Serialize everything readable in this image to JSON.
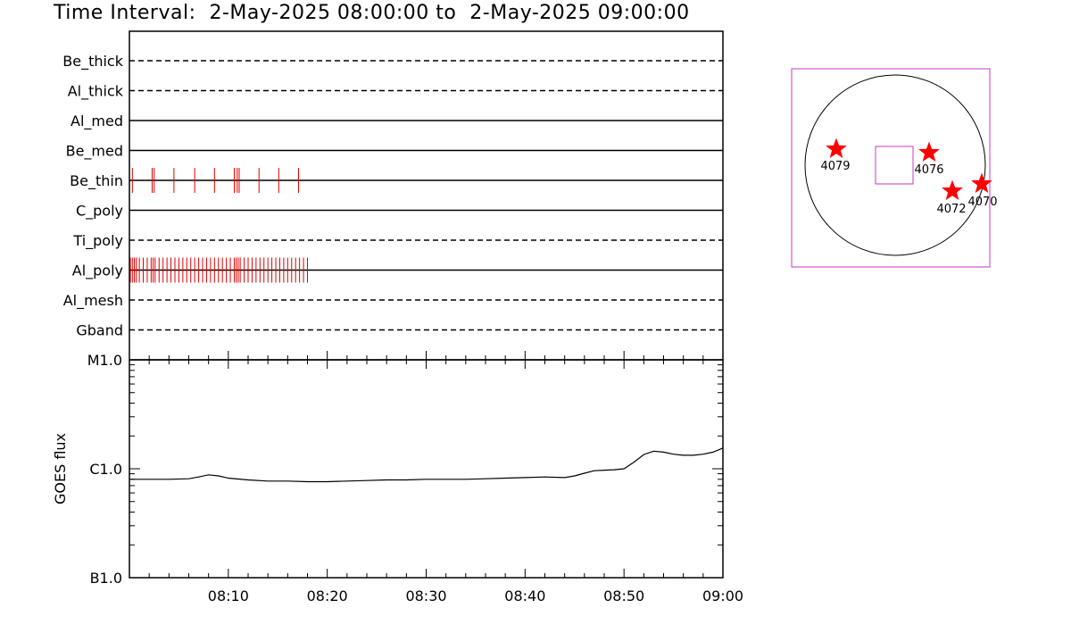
{
  "title": "Time Interval:  2-May-2025 08:00:00 to  2-May-2025 09:00:00",
  "chart_data": [
    {
      "type": "timeline",
      "channels": [
        {
          "name": "Be_thick",
          "style": "dashed",
          "events": []
        },
        {
          "name": "Al_thick",
          "style": "dashed",
          "events": []
        },
        {
          "name": "Al_med",
          "style": "solid",
          "events": []
        },
        {
          "name": "Be_med",
          "style": "solid",
          "events": []
        },
        {
          "name": "Be_thin",
          "style": "solid",
          "events": [
            0.3,
            2.3,
            2.5,
            4.5,
            6.6,
            8.6,
            10.6,
            10.9,
            11.1,
            13.1,
            15.1,
            17.1
          ]
        },
        {
          "name": "C_poly",
          "style": "solid",
          "events": []
        },
        {
          "name": "Ti_poly",
          "style": "dashed",
          "events": []
        },
        {
          "name": "Al_poly",
          "style": "solid",
          "events": [
            0.1,
            0.3,
            0.5,
            0.7,
            1.0,
            1.4,
            1.8,
            2.2,
            2.4,
            2.6,
            3.0,
            3.4,
            3.8,
            4.2,
            4.6,
            5.0,
            5.4,
            5.8,
            6.2,
            6.6,
            7.0,
            7.4,
            7.8,
            8.2,
            8.6,
            9.0,
            9.4,
            9.8,
            10.2,
            10.6,
            10.8,
            11.0,
            11.2,
            11.6,
            12.0,
            12.4,
            12.8,
            13.2,
            13.6,
            14.0,
            14.4,
            14.8,
            15.2,
            15.6,
            16.0,
            16.4,
            16.8,
            17.2,
            17.6,
            18.0
          ]
        },
        {
          "name": "Al_mesh",
          "style": "dashed",
          "events": []
        },
        {
          "name": "Gband",
          "style": "dashed",
          "events": []
        }
      ]
    },
    {
      "type": "line",
      "ylabel": "GOES flux",
      "y_scale": "log",
      "y_ticks": [
        "B1.0",
        "C1.0",
        "M1.0"
      ],
      "x_ticks": [
        "08:10",
        "08:20",
        "08:30",
        "08:40",
        "08:50",
        "09:00"
      ],
      "series": [
        {
          "x": [
            0,
            2,
            4,
            6,
            7,
            8,
            9,
            10,
            12,
            14,
            16,
            18,
            20,
            22,
            24,
            26,
            28,
            30,
            32,
            34,
            36,
            38,
            40,
            42,
            44,
            45,
            46,
            47,
            48,
            49,
            50,
            51,
            52,
            53,
            54,
            55,
            56,
            57,
            58,
            59,
            60
          ],
          "y": [
            8e-07,
            8e-07,
            8e-07,
            8.1e-07,
            8.4e-07,
            8.8e-07,
            8.6e-07,
            8.2e-07,
            7.9e-07,
            7.7e-07,
            7.7e-07,
            7.6e-07,
            7.6e-07,
            7.7e-07,
            7.8e-07,
            7.9e-07,
            7.9e-07,
            8e-07,
            8e-07,
            8e-07,
            8.1e-07,
            8.2e-07,
            8.3e-07,
            8.4e-07,
            8.3e-07,
            8.6e-07,
            9.1e-07,
            9.6e-07,
            9.7e-07,
            9.8e-07,
            1e-06,
            1.15e-06,
            1.35e-06,
            1.45e-06,
            1.42e-06,
            1.36e-06,
            1.33e-06,
            1.33e-06,
            1.36e-06,
            1.42e-06,
            1.55e-06
          ]
        }
      ]
    },
    {
      "type": "scatter",
      "title": "",
      "points": [
        {
          "label": "4079",
          "color": "#ff0000"
        },
        {
          "label": "4076",
          "color": "#ff0000"
        },
        {
          "label": "4072",
          "color": "#ff0000"
        },
        {
          "label": "4070",
          "color": "#ff0000"
        }
      ],
      "box_color": "#cc33cc"
    }
  ]
}
